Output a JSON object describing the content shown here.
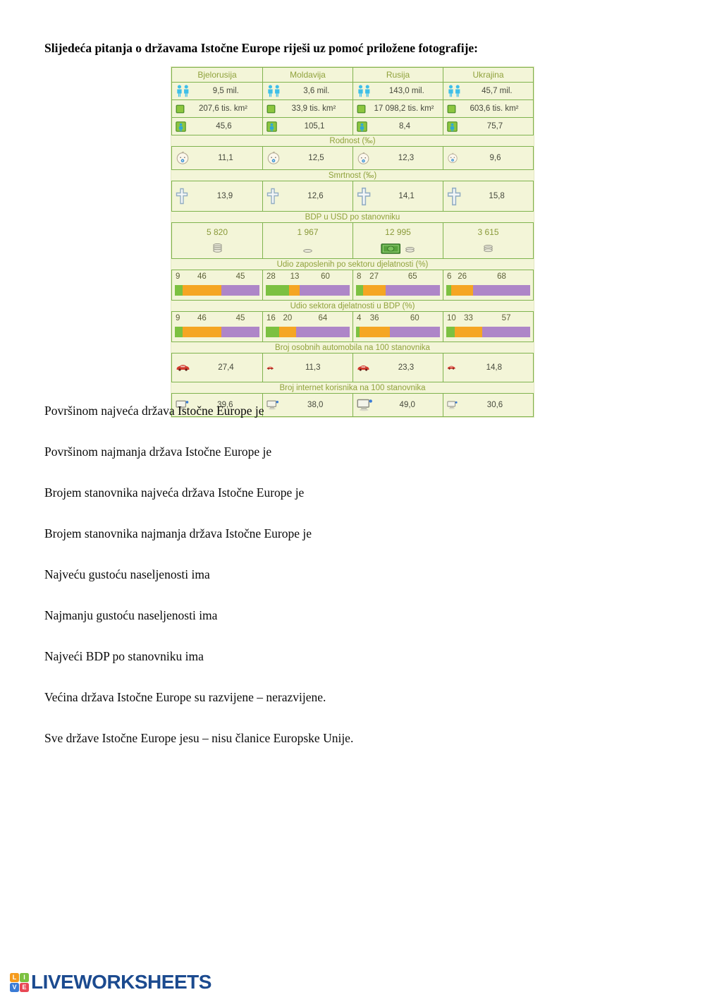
{
  "title": "Slijedeća pitanja o državama Istočne Europe riješi uz pomoć priložene fotografije:",
  "infographic": {
    "countries": [
      "Bjelorusija",
      "Moldavija",
      "Rusija",
      "Ukrajina"
    ],
    "stats": [
      {
        "icon": "population-icon",
        "label": "stanovništvo",
        "values": [
          "9,5 mil.",
          "3,6 mil.",
          "143,0 mil.",
          "45,7 mil."
        ]
      },
      {
        "icon": "area-icon",
        "label": "površina",
        "values": [
          "207,6 tis. km²",
          "33,9 tis. km²",
          "17 098,2 tis. km²",
          "603,6 tis. km²"
        ]
      },
      {
        "icon": "density-icon",
        "label": "gustoća naseljenosti",
        "values": [
          "45,6",
          "105,1",
          "8,4",
          "75,7"
        ]
      }
    ],
    "sections": [
      {
        "title": "Rodnost (‰)",
        "type": "icon-value",
        "icon": "baby-icon",
        "key": "rodnost",
        "values": [
          "11,1",
          "12,5",
          "12,3",
          "9,6"
        ]
      },
      {
        "title": "Smrtnost (‰)",
        "type": "icon-value",
        "icon": "cross-icon",
        "key": "smrtnost",
        "values": [
          "13,9",
          "12,6",
          "14,1",
          "15,8"
        ]
      },
      {
        "title": "BDP u USD po stanovniku",
        "type": "money",
        "key": "bdp",
        "values": [
          "5 820",
          "1 967",
          "12 995",
          "3 615"
        ]
      },
      {
        "title": "Udio zaposlenih po sektoru djelatnosti (%)",
        "type": "bars",
        "key": "bars",
        "values": [
          [
            9,
            46,
            45
          ],
          [
            28,
            13,
            60
          ],
          [
            8,
            27,
            65
          ],
          [
            6,
            26,
            68
          ]
        ]
      },
      {
        "title": "Udio sektora djelatnosti u BDP (%)",
        "type": "bars",
        "key": "bars",
        "values": [
          [
            9,
            46,
            45
          ],
          [
            16,
            20,
            64
          ],
          [
            4,
            36,
            60
          ],
          [
            10,
            33,
            57
          ]
        ]
      },
      {
        "title": "Broj osobnih automobila na 100 stanovnika",
        "type": "icon-value",
        "icon": "car-icon",
        "key": "cars",
        "values": [
          "27,4",
          "11,3",
          "23,3",
          "14,8"
        ]
      },
      {
        "title": "Broj internet korisnika na 100 stanovnika",
        "type": "icon-value",
        "icon": "computer-icon",
        "key": "internet",
        "values": [
          "39,6",
          "38,0",
          "49,0",
          "30,6"
        ]
      }
    ],
    "bar_colors": [
      "#7cc141",
      "#f5a623",
      "#ae86c8"
    ],
    "border_color": "#7fb34e",
    "background_color": "#f3f5d8"
  },
  "questions": [
    "Površinom najveća država Istočne Europe je",
    "Površinom najmanja država Istočne Europe je",
    "Brojem stanovnika najveća država Istočne Europe je",
    "Brojem stanovnika najmanja država Istočne Europe je",
    "Najveću gustoću naseljenosti ima",
    "Najmanju gustoću naseljenosti ima",
    "Najveći BDP po stanovniku ima",
    "Većina država Istočne Europe su razvijene – nerazvijene.",
    "Sve države Istočne Europe jesu – nisu članice Europske Unije."
  ],
  "footer": {
    "logo_text": "LIVEWORKSHEETS",
    "logo_tiles": [
      {
        "letter": "L",
        "color": "#f59b1e"
      },
      {
        "letter": "I",
        "color": "#7cc141"
      },
      {
        "letter": "V",
        "color": "#3a7bd5"
      },
      {
        "letter": "E",
        "color": "#e84855"
      }
    ],
    "logo_text_color": "#1b4a8f"
  }
}
